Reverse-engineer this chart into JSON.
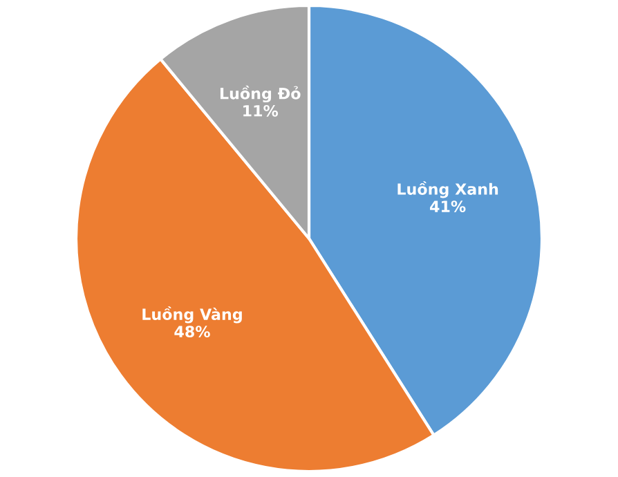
{
  "chart_data": {
    "type": "pie",
    "categories": [
      "Luồng Xanh",
      "Luồng Vàng",
      "Luồng Đỏ"
    ],
    "values": [
      41,
      48,
      11
    ],
    "value_labels": [
      "41%",
      "48%",
      "11%"
    ],
    "colors": [
      "#5b9bd5",
      "#ed7d31",
      "#a5a5a5"
    ],
    "legend": false
  }
}
